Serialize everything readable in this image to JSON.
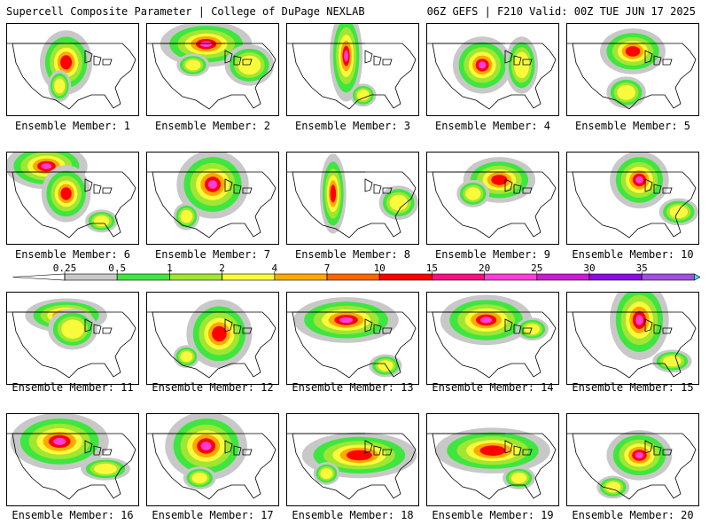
{
  "header": {
    "title": "Supercell Composite Parameter | College of DuPage NEXLAB",
    "run_info": "06Z GEFS | F210 Valid: 00Z TUE JUN 17 2025"
  },
  "legend": {
    "labels": [
      "0.25",
      "0.5",
      "1",
      "2",
      "4",
      "7",
      "10",
      "15",
      "20",
      "25",
      "30",
      "35"
    ],
    "colors": [
      "#c8c8c8",
      "#3fe63f",
      "#a0e632",
      "#fafa3c",
      "#ffaa00",
      "#ff6600",
      "#ff0000",
      "#ff0f82",
      "#ff3cdc",
      "#c81ecf",
      "#8e0be0",
      "#a050dc",
      "#3ce6e6"
    ]
  },
  "panels": [
    {
      "label": "Ensemble Member: 1",
      "blobs": [
        [
          0.45,
          0.42,
          0.16,
          0.28,
          2
        ],
        [
          0.4,
          0.68,
          0.07,
          0.14,
          1
        ]
      ]
    },
    {
      "label": "Ensemble Member: 2",
      "blobs": [
        [
          0.45,
          0.22,
          0.28,
          0.2,
          3
        ],
        [
          0.78,
          0.45,
          0.15,
          0.18,
          1
        ],
        [
          0.35,
          0.45,
          0.1,
          0.1,
          1
        ]
      ]
    },
    {
      "label": "Ensemble Member: 3",
      "blobs": [
        [
          0.45,
          0.35,
          0.1,
          0.4,
          3
        ],
        [
          0.58,
          0.78,
          0.08,
          0.1,
          1
        ]
      ]
    },
    {
      "label": "Ensemble Member: 4",
      "blobs": [
        [
          0.42,
          0.45,
          0.18,
          0.25,
          3
        ],
        [
          0.72,
          0.45,
          0.1,
          0.25,
          1
        ]
      ]
    },
    {
      "label": "Ensemble Member: 5",
      "blobs": [
        [
          0.5,
          0.3,
          0.2,
          0.2,
          2
        ],
        [
          0.45,
          0.75,
          0.12,
          0.14,
          1
        ]
      ]
    },
    {
      "label": "Ensemble Member: 6",
      "blobs": [
        [
          0.3,
          0.15,
          0.25,
          0.2,
          3
        ],
        [
          0.45,
          0.45,
          0.15,
          0.25,
          2
        ],
        [
          0.72,
          0.75,
          0.1,
          0.1,
          1
        ]
      ]
    },
    {
      "label": "Ensemble Member: 7",
      "blobs": [
        [
          0.5,
          0.35,
          0.22,
          0.3,
          3
        ],
        [
          0.3,
          0.7,
          0.08,
          0.12,
          1
        ]
      ]
    },
    {
      "label": "Ensemble Member: 8",
      "blobs": [
        [
          0.35,
          0.45,
          0.08,
          0.35,
          2
        ],
        [
          0.85,
          0.55,
          0.12,
          0.15,
          1
        ]
      ]
    },
    {
      "label": "Ensemble Member: 9",
      "blobs": [
        [
          0.55,
          0.3,
          0.22,
          0.2,
          2
        ],
        [
          0.35,
          0.45,
          0.1,
          0.12,
          1
        ]
      ]
    },
    {
      "label": "Ensemble Member: 10",
      "blobs": [
        [
          0.55,
          0.3,
          0.18,
          0.25,
          3
        ],
        [
          0.85,
          0.65,
          0.12,
          0.12,
          1
        ]
      ]
    },
    {
      "label": "Ensemble Member: 11",
      "blobs": [
        [
          0.45,
          0.25,
          0.25,
          0.15,
          3
        ],
        [
          0.5,
          0.4,
          0.15,
          0.18,
          1
        ]
      ]
    },
    {
      "label": "Ensemble Member: 12",
      "blobs": [
        [
          0.55,
          0.45,
          0.2,
          0.3,
          2
        ],
        [
          0.3,
          0.7,
          0.08,
          0.1,
          1
        ]
      ]
    },
    {
      "label": "Ensemble Member: 13",
      "blobs": [
        [
          0.45,
          0.3,
          0.32,
          0.2,
          3
        ],
        [
          0.75,
          0.8,
          0.1,
          0.1,
          1
        ]
      ]
    },
    {
      "label": "Ensemble Member: 14",
      "blobs": [
        [
          0.45,
          0.3,
          0.28,
          0.22,
          3
        ],
        [
          0.8,
          0.4,
          0.1,
          0.1,
          1
        ]
      ]
    },
    {
      "label": "Ensemble Member: 15",
      "blobs": [
        [
          0.55,
          0.3,
          0.18,
          0.35,
          3
        ],
        [
          0.8,
          0.75,
          0.12,
          0.1,
          1
        ]
      ]
    },
    {
      "label": "Ensemble Member: 16",
      "blobs": [
        [
          0.4,
          0.3,
          0.3,
          0.25,
          3
        ],
        [
          0.75,
          0.6,
          0.15,
          0.1,
          1
        ]
      ]
    },
    {
      "label": "Ensemble Member: 17",
      "blobs": [
        [
          0.45,
          0.35,
          0.25,
          0.3,
          3
        ],
        [
          0.4,
          0.7,
          0.1,
          0.1,
          1
        ]
      ]
    },
    {
      "label": "Ensemble Member: 18",
      "blobs": [
        [
          0.55,
          0.45,
          0.35,
          0.2,
          2
        ],
        [
          0.3,
          0.65,
          0.08,
          0.1,
          1
        ]
      ]
    },
    {
      "label": "Ensemble Member: 19",
      "blobs": [
        [
          0.5,
          0.4,
          0.35,
          0.2,
          2
        ],
        [
          0.7,
          0.7,
          0.1,
          0.1,
          1
        ]
      ]
    },
    {
      "label": "Ensemble Member: 20",
      "blobs": [
        [
          0.55,
          0.45,
          0.2,
          0.22,
          3
        ],
        [
          0.35,
          0.8,
          0.1,
          0.1,
          1
        ]
      ]
    }
  ]
}
